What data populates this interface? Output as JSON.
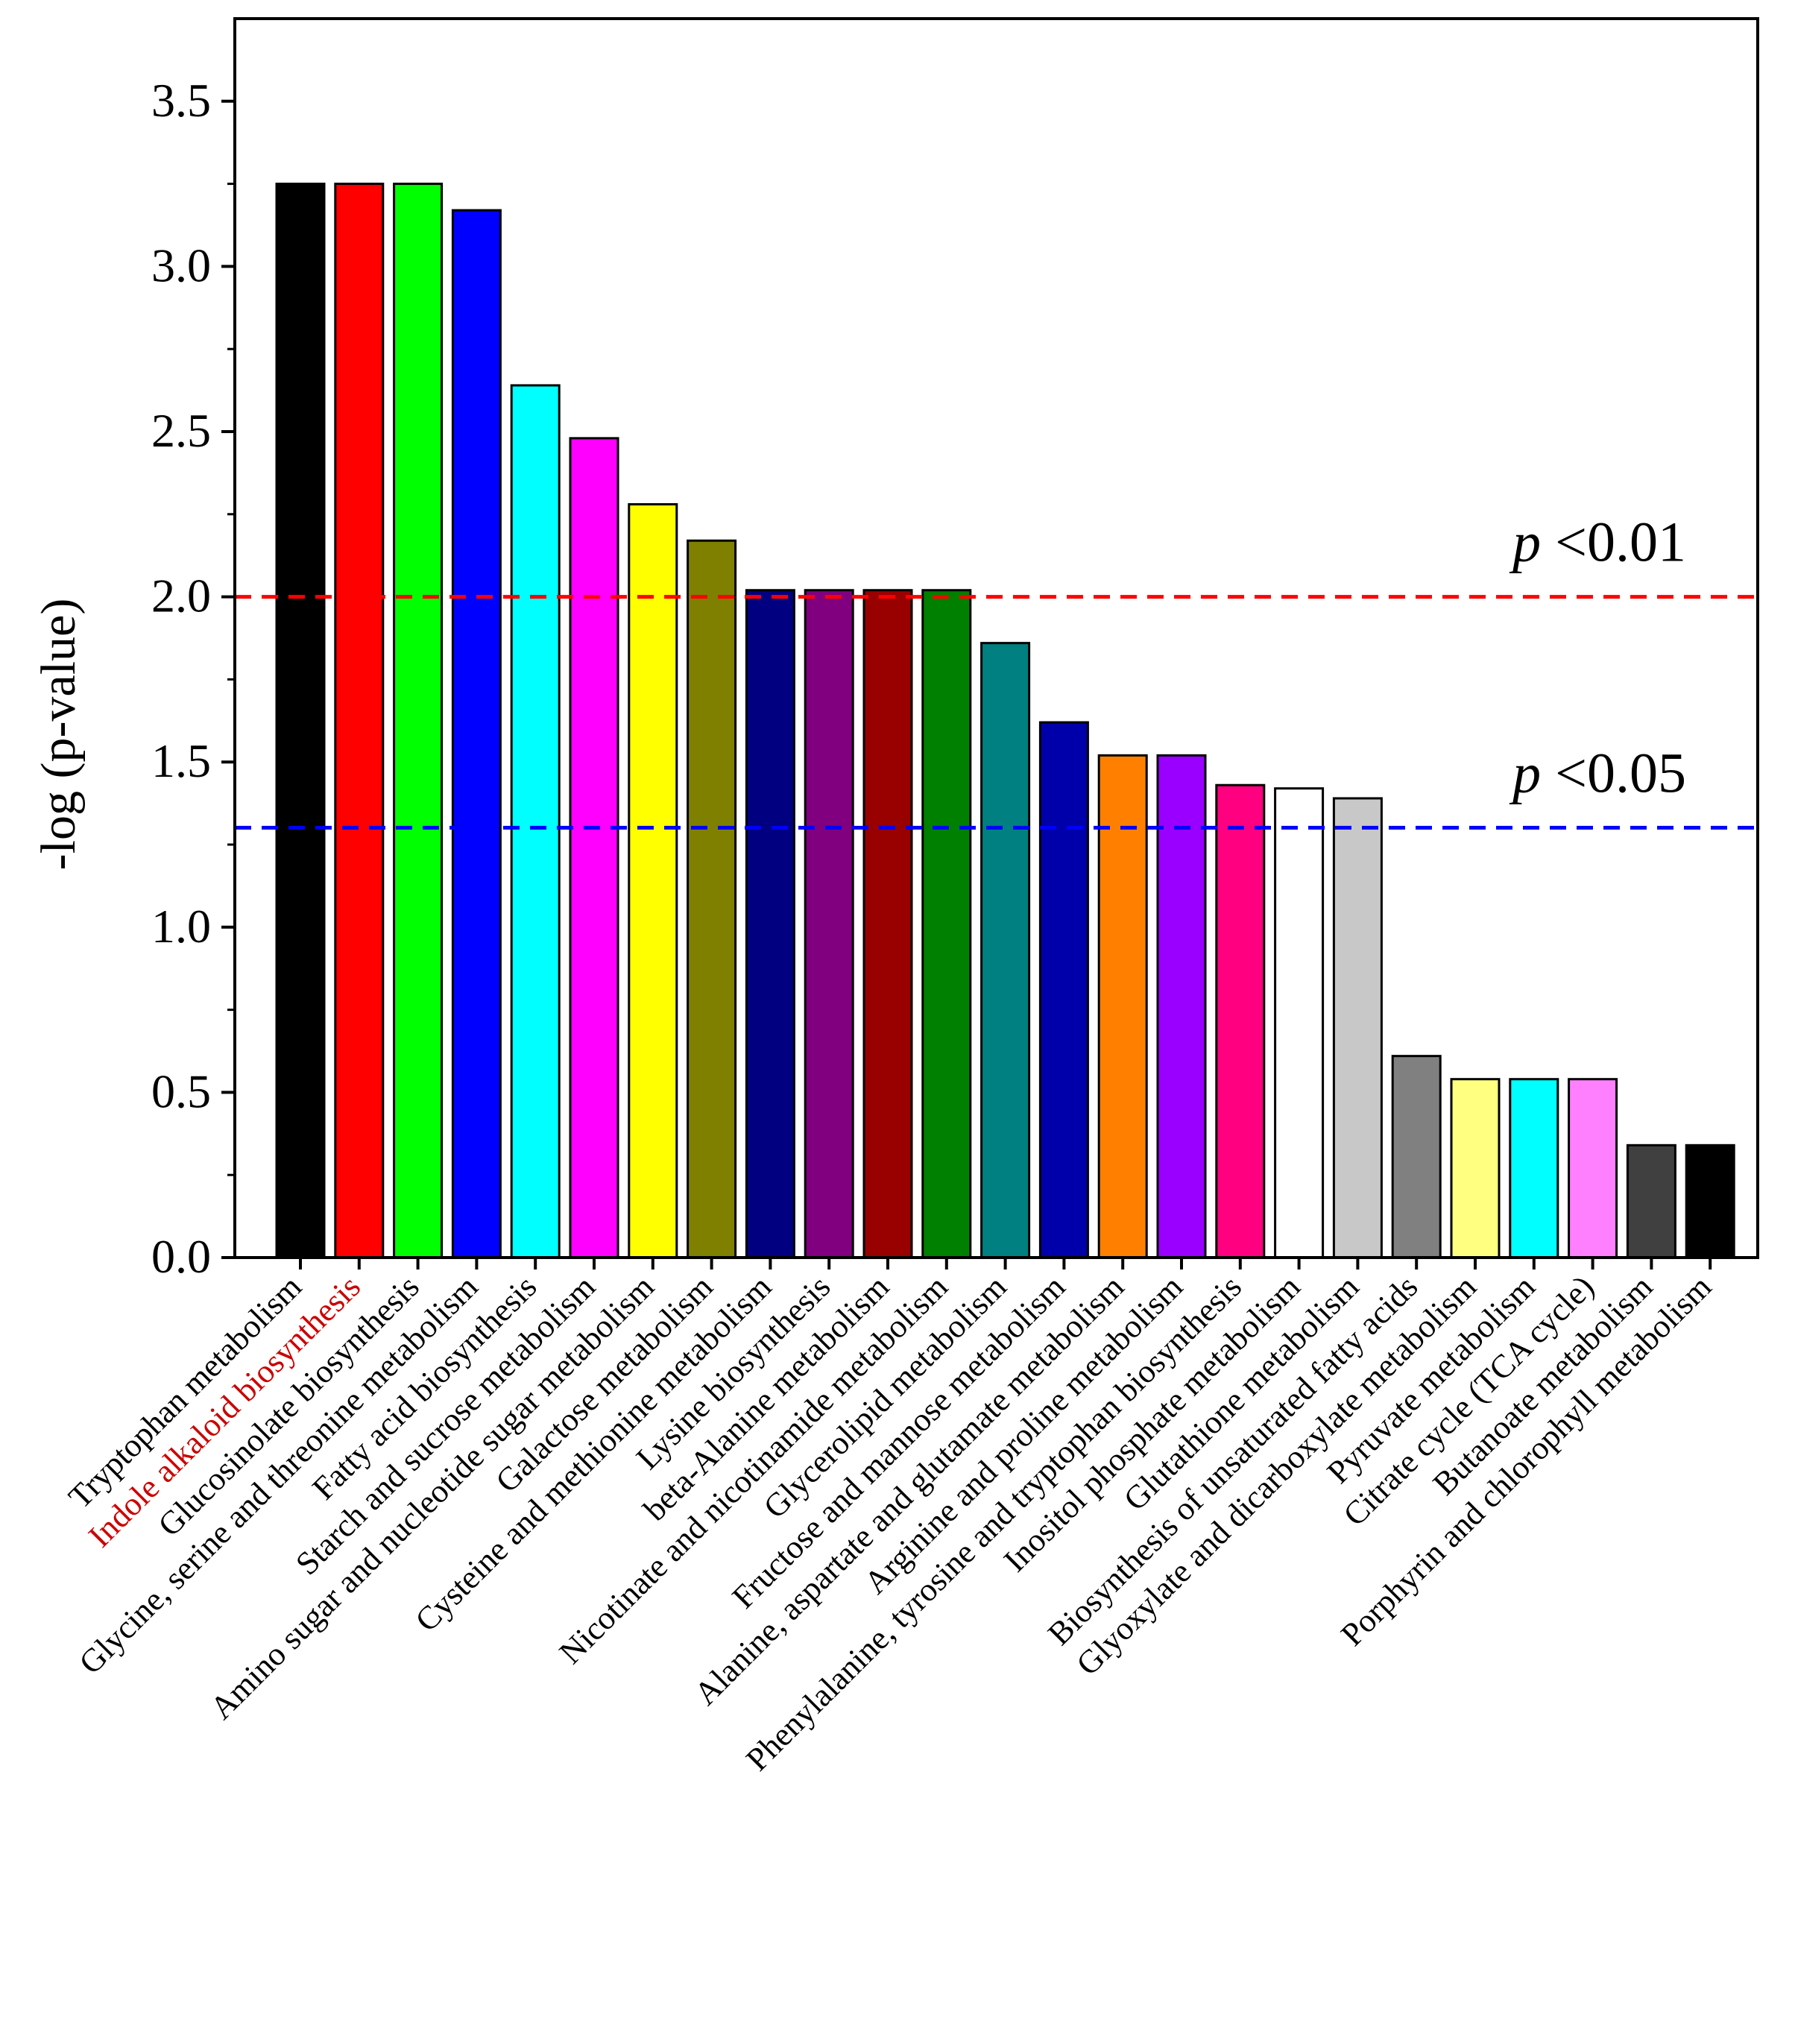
{
  "chart_data": {
    "type": "bar",
    "title": "",
    "xlabel": "",
    "ylabel": "-log (p-value)",
    "ylim": [
      0,
      3.75
    ],
    "yticks": [
      "0.0",
      "0.5",
      "1.0",
      "1.5",
      "2.0",
      "2.5",
      "3.0",
      "3.5"
    ],
    "ytick_values": [
      0,
      0.5,
      1.0,
      1.5,
      2.0,
      2.5,
      3.0,
      3.5
    ],
    "grid": false,
    "categories": [
      "Tryptophan metabolism",
      "Indole alkaloid biosynthesis",
      "Glucosinolate biosynthesis",
      "Glycine, serine and threonine metabolism",
      "Fatty acid biosynthesis",
      "Starch and sucrose metabolism",
      "Amino sugar and nucleotide sugar metabolism",
      "Galactose metabolism",
      "Cysteine and methionine metabolism",
      "Lysine biosynthesis",
      "beta-Alanine metabolism",
      "Nicotinate and nicotinamide metabolism",
      "Glycerolipid metabolism",
      "Fructose and mannose metabolism",
      "Alanine, aspartate and glutamate metabolism",
      "Arginine and proline metabolism",
      "Phenylalanine, tyrosine and tryptophan biosynthesis",
      "Inositol phosphate metabolism",
      "Glutathione metabolism",
      "Biosynthesis of unsaturated fatty acids",
      "Glyoxylate and dicarboxylate metabolism",
      "Pyruvate metabolism",
      "Citrate cycle (TCA cycle)",
      "Butanoate metabolism",
      "Porphyrin and chlorophyll metabolism"
    ],
    "values": [
      3.25,
      3.25,
      3.25,
      3.17,
      2.64,
      2.48,
      2.28,
      2.17,
      2.02,
      2.02,
      2.02,
      2.02,
      1.86,
      1.62,
      1.52,
      1.52,
      1.43,
      1.42,
      1.39,
      0.61,
      0.54,
      0.54,
      0.54,
      0.34,
      0.34
    ],
    "colors": [
      "#000000",
      "#ff0000",
      "#00ff00",
      "#0000ff",
      "#00ffff",
      "#ff00ff",
      "#ffff00",
      "#808000",
      "#000080",
      "#800080",
      "#990000",
      "#008000",
      "#008080",
      "#0000aa",
      "#ff8000",
      "#9900ff",
      "#ff0080",
      "#ffffff",
      "#c8c8c8",
      "#808080",
      "#ffff80",
      "#00ffff",
      "#ff80ff",
      "#404040",
      "#000000"
    ],
    "highlight_category_index": 1,
    "highlight_color": "#cc0000",
    "reference_lines": [
      {
        "value": 2.0,
        "p_symbol": "p",
        "label": " <0.01",
        "color": "#ff0000"
      },
      {
        "value": 1.301,
        "p_symbol": "p",
        "label": " <0.05",
        "color": "#0000ff"
      }
    ]
  }
}
